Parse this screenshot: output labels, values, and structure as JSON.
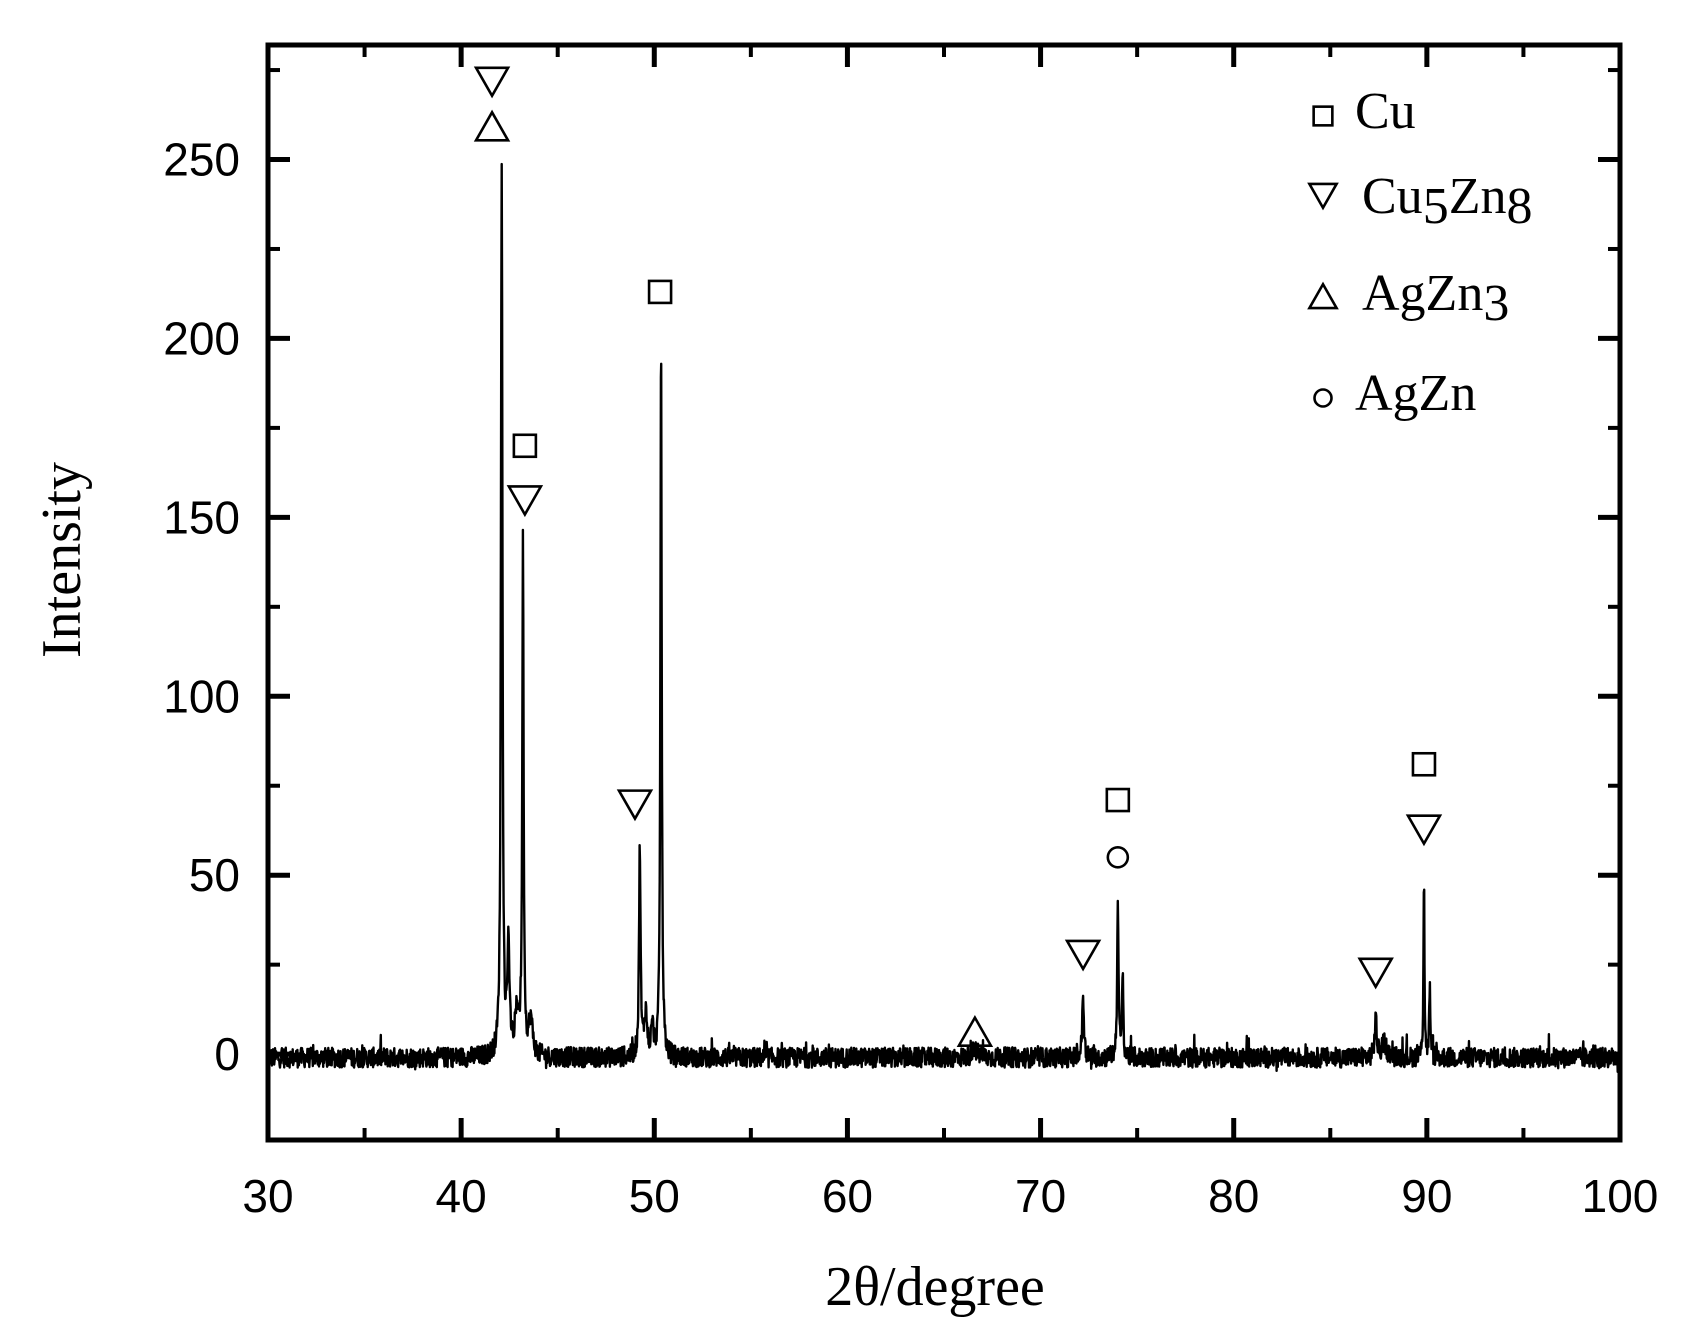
{
  "chart_data": {
    "type": "line",
    "title": "",
    "xlabel": "2θ/degree",
    "ylabel": "Intensity",
    "xlim": [
      30,
      100
    ],
    "ylim": [
      -24,
      282
    ],
    "xticks": [
      30,
      40,
      50,
      60,
      70,
      80,
      90,
      100
    ],
    "xtick_labels": [
      "30",
      "40",
      "50",
      "60",
      "70",
      "80",
      "90",
      "100"
    ],
    "yticks": [
      0,
      50,
      100,
      150,
      200,
      250
    ],
    "ytick_labels": [
      "0",
      "50",
      "100",
      "150",
      "200",
      "250"
    ],
    "grid": false,
    "legend_position": "top-right",
    "legend": [
      {
        "marker": "square",
        "label": "Cu",
        "base": "Cu",
        "sub1": "",
        "mid": "",
        "sub2": ""
      },
      {
        "marker": "triangle-down",
        "label": "Cu5Zn8",
        "base": "Cu",
        "sub1": "5",
        "mid": "Zn",
        "sub2": "8"
      },
      {
        "marker": "triangle-up",
        "label": "AgZn3",
        "base": "AgZn",
        "sub1": "3",
        "mid": "",
        "sub2": ""
      },
      {
        "marker": "circle",
        "label": "AgZn",
        "base": "AgZn",
        "sub1": "",
        "mid": "",
        "sub2": ""
      }
    ],
    "series": [
      {
        "baseline": -1,
        "noise": 2.8,
        "peaks": [
          {
            "x": 42.1,
            "y": 250,
            "w": 0.09
          },
          {
            "x": 42.45,
            "y": 32,
            "w": 0.12
          },
          {
            "x": 42.9,
            "y": 12,
            "w": 0.25
          },
          {
            "x": 43.2,
            "y": 146,
            "w": 0.08
          },
          {
            "x": 43.6,
            "y": 10,
            "w": 0.25
          },
          {
            "x": 49.25,
            "y": 59,
            "w": 0.09
          },
          {
            "x": 49.55,
            "y": 12,
            "w": 0.18
          },
          {
            "x": 49.9,
            "y": 8,
            "w": 0.15
          },
          {
            "x": 50.35,
            "y": 204,
            "w": 0.08
          },
          {
            "x": 66.6,
            "y": 2,
            "w": 0.4
          },
          {
            "x": 72.2,
            "y": 18,
            "w": 0.1
          },
          {
            "x": 74.0,
            "y": 45,
            "w": 0.08
          },
          {
            "x": 74.25,
            "y": 22,
            "w": 0.08
          },
          {
            "x": 87.35,
            "y": 11,
            "w": 0.12
          },
          {
            "x": 87.8,
            "y": 4,
            "w": 0.3
          },
          {
            "x": 89.85,
            "y": 53,
            "w": 0.06
          },
          {
            "x": 90.15,
            "y": 20,
            "w": 0.07
          }
        ]
      }
    ],
    "annotations": [
      {
        "marker": "triangle-down",
        "x": 41.6,
        "y": 272
      },
      {
        "marker": "triangle-up",
        "x": 41.6,
        "y": 259
      },
      {
        "marker": "square",
        "x": 43.3,
        "y": 170
      },
      {
        "marker": "triangle-down",
        "x": 43.3,
        "y": 155
      },
      {
        "marker": "triangle-down",
        "x": 49.0,
        "y": 70
      },
      {
        "marker": "square",
        "x": 50.3,
        "y": 213
      },
      {
        "marker": "triangle-up",
        "x": 66.6,
        "y": 6
      },
      {
        "marker": "triangle-down",
        "x": 72.2,
        "y": 28
      },
      {
        "marker": "square",
        "x": 74.0,
        "y": 71
      },
      {
        "marker": "circle",
        "x": 74.0,
        "y": 55
      },
      {
        "marker": "triangle-down",
        "x": 87.35,
        "y": 23
      },
      {
        "marker": "square",
        "x": 89.85,
        "y": 81
      },
      {
        "marker": "triangle-down",
        "x": 89.85,
        "y": 63
      }
    ]
  }
}
